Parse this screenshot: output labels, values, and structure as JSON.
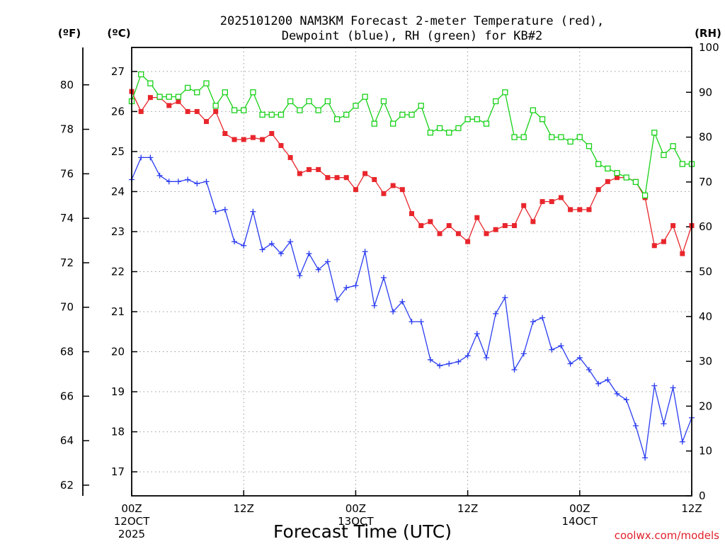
{
  "chart_data": {
    "type": "line",
    "title_line1": "2025101200 NAM3KM Forecast 2-meter Temperature (red),",
    "title_line2": "Dewpoint (blue), RH (green) for KB#2",
    "xlabel": "Forecast Time (UTC)",
    "credit": "coolwx.com/models",
    "unit_f": "(ºF)",
    "unit_c": "(ºC)",
    "unit_rh": "(RH)",
    "x_range_hours": [
      0,
      60
    ],
    "x_ticks": [
      {
        "hour": 0,
        "line1": "00Z",
        "line2": "12OCT",
        "line3": "2025"
      },
      {
        "hour": 12,
        "line1": "12Z",
        "line2": "",
        "line3": ""
      },
      {
        "hour": 24,
        "line1": "00Z",
        "line2": "13OCT",
        "line3": ""
      },
      {
        "hour": 36,
        "line1": "12Z",
        "line2": "",
        "line3": ""
      },
      {
        "hour": 48,
        "line1": "00Z",
        "line2": "14OCT",
        "line3": ""
      },
      {
        "hour": 60,
        "line1": "12Z",
        "line2": "",
        "line3": ""
      }
    ],
    "celsius_range": [
      16.4,
      27.6
    ],
    "celsius_ticks": [
      "17",
      "18",
      "19",
      "20",
      "21",
      "22",
      "23",
      "24",
      "25",
      "26",
      "27"
    ],
    "fahrenheit_ticks": [
      "62",
      "64",
      "66",
      "68",
      "70",
      "72",
      "74",
      "76",
      "78",
      "80"
    ],
    "rh_range": [
      0,
      100
    ],
    "rh_ticks": [
      "0",
      "10",
      "20",
      "30",
      "40",
      "50",
      "60",
      "70",
      "80",
      "90",
      "100"
    ],
    "series": [
      {
        "name": "Temperature",
        "color": "#e8262c",
        "axis": "celsius",
        "marker": "filled-square",
        "values": [
          26.5,
          26.0,
          26.35,
          26.35,
          26.15,
          26.25,
          26.0,
          26.0,
          25.75,
          26.0,
          25.45,
          25.3,
          25.3,
          25.35,
          25.3,
          25.45,
          25.15,
          24.85,
          24.45,
          24.55,
          24.55,
          24.35,
          24.35,
          24.35,
          24.05,
          24.45,
          24.3,
          23.95,
          24.15,
          24.05,
          23.45,
          23.15,
          23.25,
          22.95,
          23.15,
          22.95,
          22.75,
          23.35,
          22.95,
          23.05,
          23.15,
          23.15,
          23.65,
          23.25,
          23.75,
          23.75,
          23.85,
          23.55,
          23.55,
          23.55,
          24.05,
          24.25,
          24.35,
          24.35,
          24.25,
          23.85,
          22.65,
          22.75,
          23.15,
          22.45,
          23.15
        ]
      },
      {
        "name": "Dewpoint",
        "color": "#2a3cf0",
        "axis": "celsius",
        "marker": "plus",
        "values": [
          24.3,
          24.85,
          24.85,
          24.4,
          24.25,
          24.25,
          24.3,
          24.2,
          24.25,
          23.5,
          23.55,
          22.75,
          22.65,
          23.5,
          22.55,
          22.7,
          22.45,
          22.75,
          21.9,
          22.45,
          22.05,
          22.25,
          21.3,
          21.6,
          21.65,
          22.5,
          21.15,
          21.85,
          21.0,
          21.25,
          20.75,
          20.75,
          19.8,
          19.65,
          19.7,
          19.75,
          19.9,
          20.45,
          19.85,
          20.95,
          21.35,
          19.55,
          19.95,
          20.75,
          20.85,
          20.05,
          20.15,
          19.7,
          19.85,
          19.55,
          19.2,
          19.3,
          18.95,
          18.8,
          18.15,
          17.35,
          19.15,
          18.2,
          19.1,
          17.75,
          18.35
        ]
      },
      {
        "name": "RH",
        "color": "#17d117",
        "axis": "rh",
        "marker": "open-square",
        "values": [
          88,
          94,
          92,
          89,
          89,
          89,
          91,
          90,
          92,
          87,
          90,
          86,
          86,
          90,
          85,
          85,
          85,
          88,
          86,
          88,
          86,
          88,
          84,
          85,
          87,
          89,
          83,
          88,
          83,
          85,
          85,
          87,
          81,
          82,
          81,
          82,
          84,
          84,
          83,
          88,
          90,
          80,
          80,
          86,
          84,
          80,
          80,
          79,
          80,
          78,
          74,
          73,
          72,
          71,
          70,
          67,
          81,
          76,
          78,
          74,
          74
        ]
      }
    ]
  }
}
